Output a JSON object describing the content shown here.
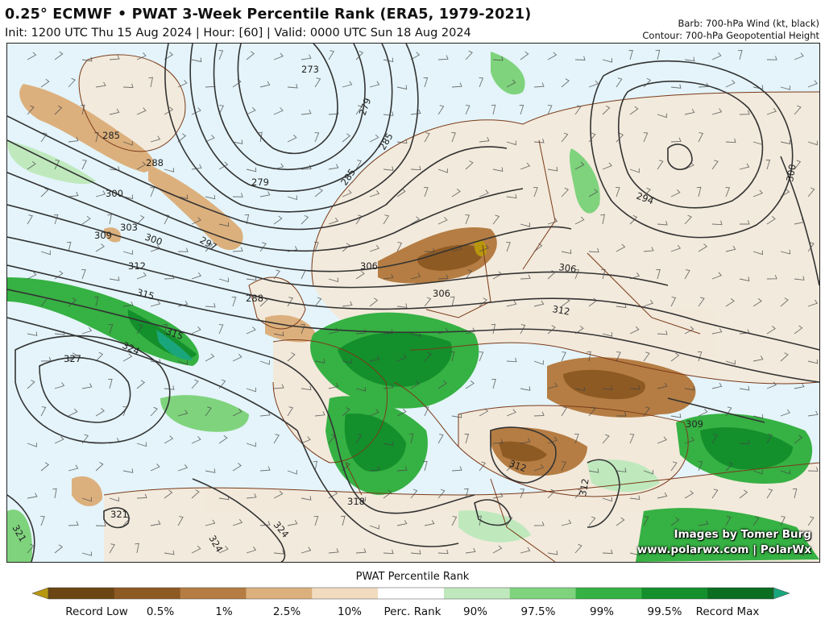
{
  "header": {
    "title": "0.25° ECMWF • PWAT 3-Week Percentile Rank (ERA5, 1979-2021)",
    "subtitle": "Init: 1200 UTC Thu 15 Aug 2024 | Hour: [60] | Valid: 0000 UTC Sun 18 Aug 2024",
    "barb_note": "Barb: 700-hPa Wind (kt, black)",
    "contour_note": "Contour: 700-hPa Geopotential Height"
  },
  "map": {
    "contour_labels": [
      "273",
      "279",
      "279",
      "285",
      "285",
      "285",
      "288",
      "288",
      "294",
      "297",
      "300",
      "300",
      "303",
      "306",
      "306",
      "306",
      "309",
      "312",
      "312",
      "312",
      "315",
      "315",
      "318",
      "321",
      "321",
      "324",
      "324",
      "324",
      "327",
      "312",
      "309",
      "300"
    ],
    "credits": {
      "line1": "Images by Tomer Burg",
      "line2": "www.polarwx.com | PolarWx"
    }
  },
  "colorbar": {
    "title": "PWAT Percentile Rank",
    "labels": [
      "Record Low",
      "0.5%",
      "1%",
      "2.5%",
      "10%",
      "Perc. Rank",
      "90%",
      "97.5%",
      "99%",
      "99.5%",
      "Record Max"
    ],
    "colors": [
      "#b8960e",
      "#6b4513",
      "#8e5a24",
      "#b57d43",
      "#dcb07d",
      "#f1dcc0",
      "#ffffff",
      "#bfe9bd",
      "#7fd37d",
      "#36b143",
      "#138f2c",
      "#0b6e20",
      "#1aa67d"
    ]
  }
}
